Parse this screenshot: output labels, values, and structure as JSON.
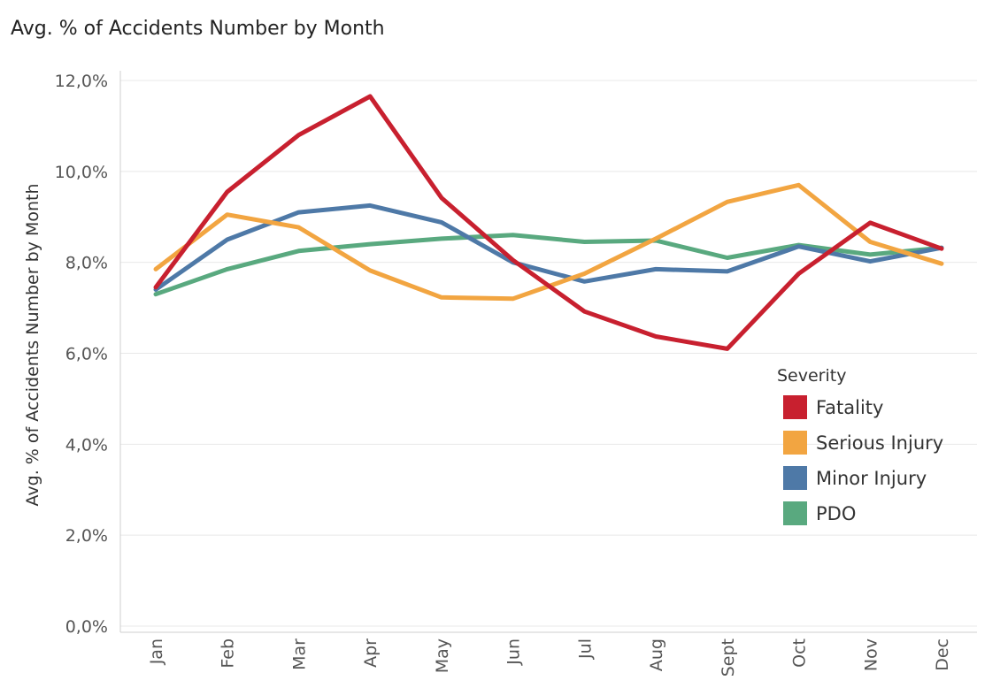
{
  "title": "Avg. % of Accidents Number by Month",
  "chart_data": {
    "type": "line",
    "title": "Avg. % of Accidents Number by Month",
    "xlabel": "",
    "ylabel": "Avg. % of Accidents Number by Month",
    "ylim": [
      0,
      12
    ],
    "yticks": [
      0,
      2,
      4,
      6,
      8,
      10,
      12
    ],
    "ytick_labels": [
      "0,0%",
      "2,0%",
      "4,0%",
      "6,0%",
      "8,0%",
      "10,0%",
      "12,0%"
    ],
    "grid": true,
    "categories": [
      "Jan",
      "Feb",
      "Mar",
      "Apr",
      "May",
      "Jun",
      "Jul",
      "Aug",
      "Sept",
      "Oct",
      "Nov",
      "Dec"
    ],
    "legend": {
      "title": "Severity",
      "placement": "right"
    },
    "series": [
      {
        "name": "PDO",
        "color": "#59a97f",
        "values": [
          7.3,
          7.85,
          8.25,
          8.4,
          8.52,
          8.6,
          8.45,
          8.48,
          8.1,
          8.38,
          8.17,
          8.32
        ]
      },
      {
        "name": "Minor Injury",
        "color": "#4e79a7",
        "values": [
          7.4,
          8.5,
          9.1,
          9.25,
          8.88,
          8.0,
          7.58,
          7.85,
          7.8,
          8.35,
          8.02,
          8.32
        ]
      },
      {
        "name": "Serious Injury",
        "color": "#f2a541",
        "values": [
          7.85,
          9.05,
          8.77,
          7.82,
          7.23,
          7.2,
          7.75,
          8.52,
          9.33,
          9.7,
          8.45,
          7.97
        ]
      },
      {
        "name": "Fatality",
        "color": "#c8202f",
        "values": [
          7.45,
          9.55,
          10.8,
          11.65,
          9.42,
          8.05,
          6.92,
          6.37,
          6.1,
          7.75,
          8.87,
          8.3
        ]
      }
    ],
    "legend_order": [
      "Fatality",
      "Serious Injury",
      "Minor Injury",
      "PDO"
    ]
  }
}
